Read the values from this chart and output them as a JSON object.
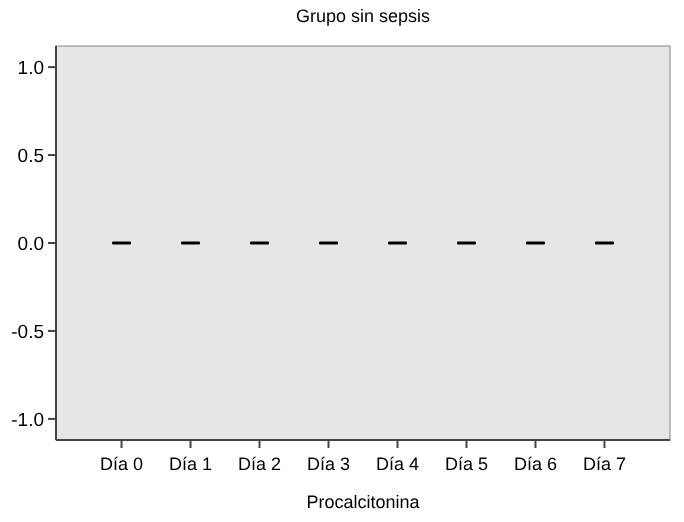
{
  "chart_data": {
    "type": "box",
    "title": "Grupo sin sepsis",
    "xlabel": "Procalcitonina",
    "categories": [
      "Día 0",
      "Día 1",
      "Día 2",
      "Día 3",
      "Día 4",
      "Día 5",
      "Día 6",
      "Día 7"
    ],
    "boxes": [
      {
        "low": 0,
        "q1": 0,
        "median": 0,
        "q3": 0,
        "high": 0
      },
      {
        "low": 0,
        "q1": 0,
        "median": 0,
        "q3": 0,
        "high": 0
      },
      {
        "low": 0,
        "q1": 0,
        "median": 0,
        "q3": 0,
        "high": 0
      },
      {
        "low": 0,
        "q1": 0,
        "median": 0,
        "q3": 0,
        "high": 0
      },
      {
        "low": 0,
        "q1": 0,
        "median": 0,
        "q3": 0,
        "high": 0
      },
      {
        "low": 0,
        "q1": 0,
        "median": 0,
        "q3": 0,
        "high": 0
      },
      {
        "low": 0,
        "q1": 0,
        "median": 0,
        "q3": 0,
        "high": 0
      },
      {
        "low": 0,
        "q1": 0,
        "median": 0,
        "q3": 0,
        "high": 0
      }
    ],
    "ylim": [
      -1.12,
      1.12
    ],
    "yticks": [
      {
        "value": -1,
        "label": "-1.0"
      },
      {
        "value": -0.5,
        "label": "-0.5"
      },
      {
        "value": 0,
        "label": "0.0"
      },
      {
        "value": 0.5,
        "label": "0.5"
      },
      {
        "value": 1,
        "label": "1.0"
      }
    ],
    "grid": false
  }
}
